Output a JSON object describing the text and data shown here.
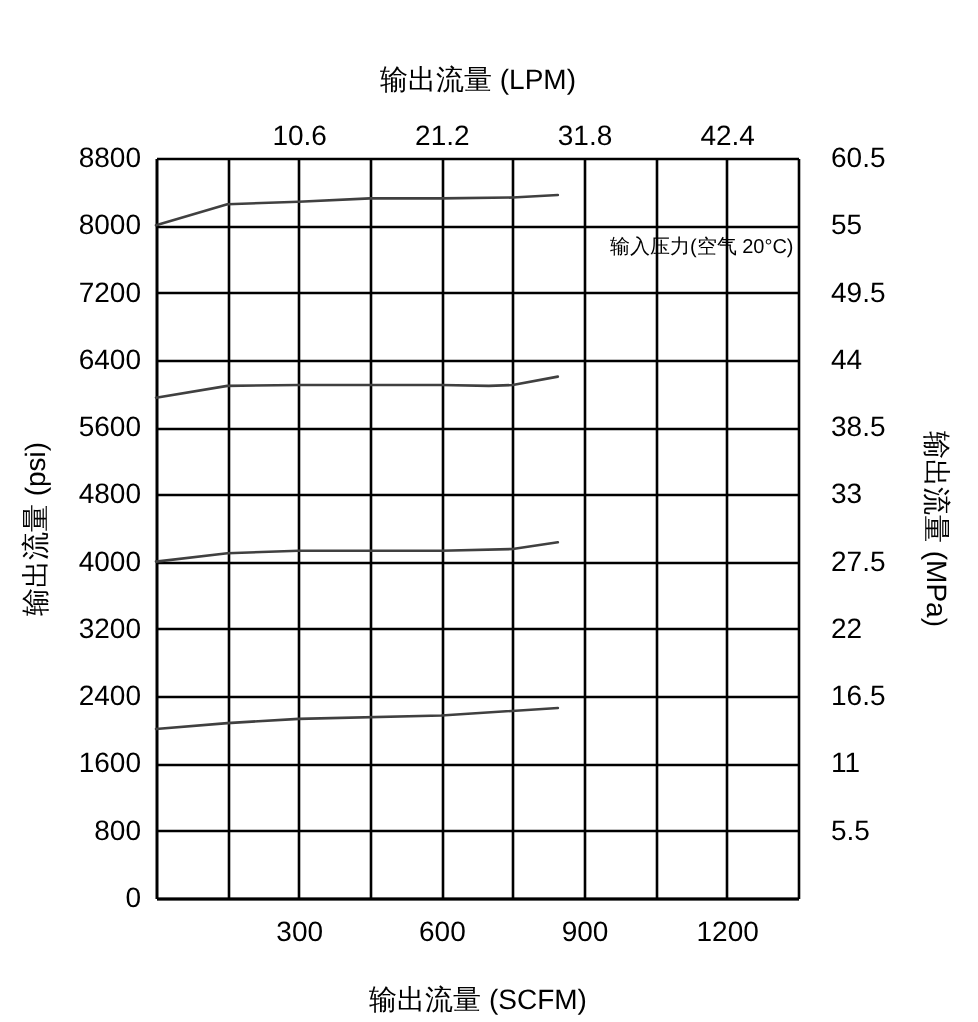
{
  "chart_data": {
    "type": "line",
    "xlabel": "输出流量 (SCFM)",
    "ylabel": "输出流量 (psi)",
    "y2label": "输出流量 (MPa)",
    "x2label": "输出流量 (LPM)",
    "annotations": [
      "输入压力(空气 20°C)"
    ],
    "series": [
      {
        "color": "#404040",
        "x": [
          0,
          150,
          300,
          450,
          600,
          750,
          845
        ],
        "values": [
          8000,
          8250,
          8280,
          8320,
          8320,
          8330,
          8360
        ]
      },
      {
        "color": "#404040",
        "x": [
          0,
          150,
          300,
          600,
          700,
          750,
          845
        ],
        "values": [
          5950,
          6090,
          6100,
          6100,
          6090,
          6100,
          6200
        ]
      },
      {
        "color": "#404040",
        "x": [
          0,
          150,
          300,
          600,
          750,
          845
        ],
        "values": [
          4000,
          4100,
          4130,
          4130,
          4150,
          4230
        ]
      },
      {
        "color": "#404040",
        "x": [
          0,
          150,
          300,
          600,
          845
        ],
        "values": [
          2010,
          2080,
          2130,
          2170,
          2260
        ]
      }
    ],
    "xlim": [
      0,
      1350
    ],
    "xticks": [
      {
        "value": 150,
        "label": null
      },
      300,
      {
        "value": 450,
        "label": null
      },
      600,
      {
        "value": 750,
        "label": null
      },
      900,
      {
        "value": 1050,
        "label": null
      },
      1200,
      {
        "value": 1350,
        "label": null
      }
    ],
    "ylim": [
      0,
      8800
    ],
    "yticks": [
      0,
      800,
      1600,
      2400,
      3200,
      4000,
      4800,
      5600,
      6400,
      7200,
      8000,
      8800
    ],
    "y2lim": [
      0,
      60.5
    ],
    "y2ticks": [
      5.5,
      11,
      16.5,
      22,
      27.5,
      33,
      38.5,
      44,
      49.5,
      55,
      60.5
    ],
    "x2lim": [
      0,
      47.7
    ],
    "x2ticks": [
      10.6,
      21.2,
      31.8,
      42.4
    ],
    "grid": true,
    "line_style": "solid",
    "marker": "none"
  }
}
